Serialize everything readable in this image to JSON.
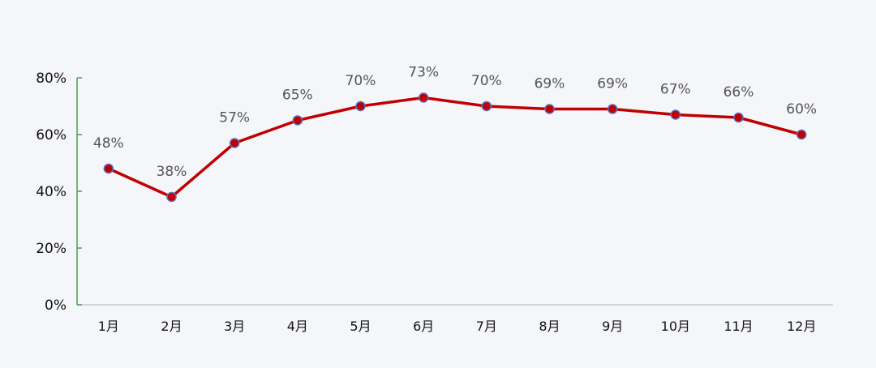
{
  "chart_data": {
    "type": "line",
    "title": "",
    "xlabel": "",
    "ylabel": "",
    "categories": [
      "1月",
      "2月",
      "3月",
      "4月",
      "5月",
      "6月",
      "7月",
      "8月",
      "9月",
      "10月",
      "11月",
      "12月"
    ],
    "series": [
      {
        "values": [
          48,
          38,
          57,
          65,
          70,
          73,
          70,
          69,
          69,
          67,
          66,
          60
        ],
        "labels": [
          "48%",
          "38%",
          "57%",
          "65%",
          "70%",
          "73%",
          "70%",
          "69%",
          "69%",
          "67%",
          "66%",
          "60%"
        ]
      }
    ],
    "ylim": [
      0,
      80
    ],
    "yticks": [
      "0%",
      "20%",
      "40%",
      "60%",
      "80%"
    ],
    "ytick_values": [
      0,
      20,
      40,
      60,
      80
    ],
    "grid": false,
    "colors": {
      "line": "#c00000",
      "marker_fill": "#c00000",
      "marker_stroke": "#5b6fc4",
      "y_axis": "#4aa04a",
      "x_axis": "#c8c8c8",
      "label": "#555555",
      "tick": "#111111"
    }
  }
}
